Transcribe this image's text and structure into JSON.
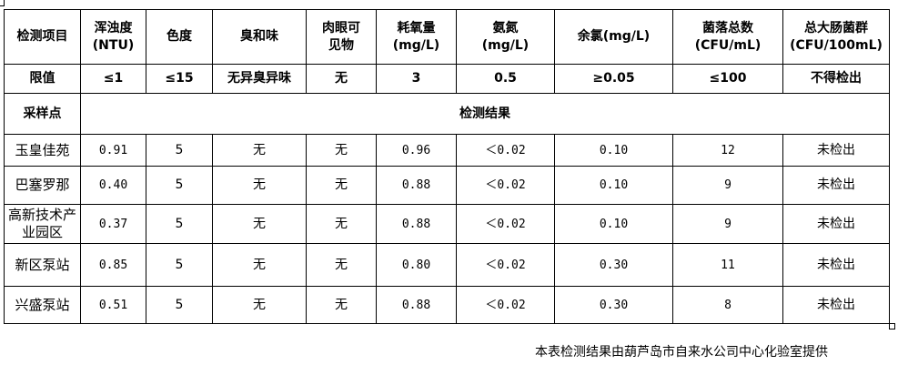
{
  "header": {
    "columns": [
      "检测项目",
      "浑浊度\n(NTU)",
      "色度",
      "臭和味",
      "肉眼可\n见物",
      "耗氧量\n(mg/L)",
      "氨氮\n(mg/L)",
      "余氯(mg/L)",
      "菌落总数\n(CFU/mL)",
      "总大肠菌群\n(CFU/100mL)"
    ]
  },
  "limits": {
    "label": "限值",
    "values": [
      "≤1",
      "≤15",
      "无异臭异味",
      "无",
      "3",
      "0.5",
      "≥0.05",
      "≤100",
      "不得检出"
    ]
  },
  "section": {
    "site_label": "采样点",
    "results_label": "检测结果"
  },
  "rows": [
    {
      "site": "玉皇佳苑",
      "values": [
        "0.91",
        "5",
        "无",
        "无",
        "0.96",
        "＜0.02",
        "0.10",
        "12",
        "未检出"
      ]
    },
    {
      "site": "巴塞罗那",
      "values": [
        "0.40",
        "5",
        "无",
        "无",
        "0.88",
        "＜0.02",
        "0.10",
        "9",
        "未检出"
      ]
    },
    {
      "site": "高新技术产业园区",
      "values": [
        "0.37",
        "5",
        "无",
        "无",
        "0.88",
        "＜0.02",
        "0.10",
        "9",
        "未检出"
      ]
    },
    {
      "site": "新区泵站",
      "values": [
        "0.85",
        "5",
        "无",
        "无",
        "0.80",
        "＜0.02",
        "0.30",
        "11",
        "未检出"
      ]
    },
    {
      "site": "兴盛泵站",
      "values": [
        "0.51",
        "5",
        "无",
        "无",
        "0.88",
        "＜0.02",
        "0.30",
        "8",
        "未检出"
      ]
    }
  ],
  "footer": "本表检测结果由葫芦岛市自来水公司中心化验室提供"
}
